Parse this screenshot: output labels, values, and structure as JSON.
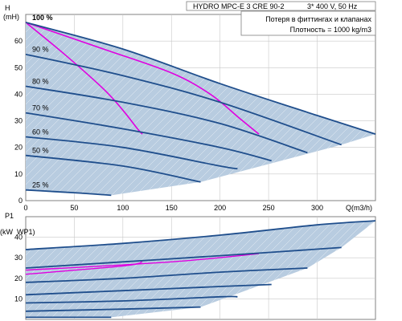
{
  "chart_data": [
    {
      "type": "line",
      "title": "HYDRO MPC-E 3 CRE 90-2",
      "subtitle": "3* 400 V, 50 Hz",
      "annotations": [
        "Потеря в фиттингах и клапанах",
        "Плотность = 1000 kg/m3"
      ],
      "ylabel": "H",
      "yunit": "(mH)",
      "xlabel": "Q(m3/h)",
      "xlim": [
        0,
        360
      ],
      "ylim": [
        0,
        70
      ],
      "xticks": [
        "0",
        "50",
        "100",
        "150",
        "200",
        "250",
        "300"
      ],
      "yticks": [
        "0",
        "10",
        "20",
        "30",
        "40",
        "50",
        "60"
      ],
      "grid": true,
      "area_color": "#b8cce0",
      "curve_color": "#1f4e8c",
      "efficiency_color": "#e000e0",
      "series": [
        {
          "name": "100 %",
          "x": [
            0,
            100,
            200,
            300,
            360
          ],
          "y": [
            67,
            57,
            44,
            32,
            25
          ]
        },
        {
          "name": "90 %",
          "x": [
            0,
            100,
            200,
            325
          ],
          "y": [
            55,
            47,
            37,
            21
          ]
        },
        {
          "name": "80 %",
          "x": [
            0,
            100,
            200,
            290
          ],
          "y": [
            43,
            37,
            29,
            18
          ]
        },
        {
          "name": "70 %",
          "x": [
            0,
            100,
            200,
            253
          ],
          "y": [
            33,
            27,
            20,
            15
          ]
        },
        {
          "name": "60 %",
          "x": [
            0,
            100,
            200,
            218
          ],
          "y": [
            24,
            20,
            13,
            12
          ]
        },
        {
          "name": "50 %",
          "x": [
            0,
            100,
            180
          ],
          "y": [
            17,
            13,
            7
          ]
        },
        {
          "name": "25 %",
          "x": [
            0,
            50,
            88
          ],
          "y": [
            4,
            3,
            2
          ]
        }
      ],
      "efficiency_curves": [
        {
          "x": [
            0,
            40,
            80,
            100,
            115,
            120
          ],
          "y": [
            67,
            55,
            42,
            34,
            27,
            25
          ]
        },
        {
          "x": [
            0,
            80,
            150,
            190,
            220,
            240
          ],
          "y": [
            67,
            57,
            48,
            40,
            31,
            25
          ]
        }
      ]
    },
    {
      "type": "line",
      "ylabel": "P1",
      "yunit": "(kW",
      "ylim": [
        0,
        50
      ],
      "yticks": [
        "10",
        "20",
        "30",
        "40"
      ],
      "grid": true,
      "series": [
        {
          "name": "100 %",
          "x": [
            0,
            100,
            200,
            300,
            360
          ],
          "y": [
            34,
            37,
            41,
            46,
            48
          ]
        },
        {
          "name": "90 %",
          "x": [
            0,
            100,
            200,
            325
          ],
          "y": [
            25,
            28,
            31,
            35
          ]
        },
        {
          "name": "80 %",
          "x": [
            0,
            100,
            200,
            290
          ],
          "y": [
            18,
            20,
            23,
            25
          ]
        },
        {
          "name": "70 %",
          "x": [
            0,
            100,
            200,
            253
          ],
          "y": [
            12,
            14,
            16,
            17
          ]
        },
        {
          "name": "60 %",
          "x": [
            0,
            100,
            200,
            218
          ],
          "y": [
            8,
            9,
            11,
            11
          ]
        },
        {
          "name": "50 %",
          "x": [
            0,
            100,
            180
          ],
          "y": [
            4,
            5,
            6
          ]
        },
        {
          "name": "25 %",
          "x": [
            0,
            50,
            88
          ],
          "y": [
            1,
            1,
            1
          ]
        }
      ],
      "efficiency_curves": [
        {
          "x": [
            0,
            100,
            120
          ],
          "y": [
            22,
            26,
            28
          ]
        },
        {
          "x": [
            0,
            150,
            240
          ],
          "y": [
            24,
            28,
            32
          ]
        }
      ]
    }
  ]
}
